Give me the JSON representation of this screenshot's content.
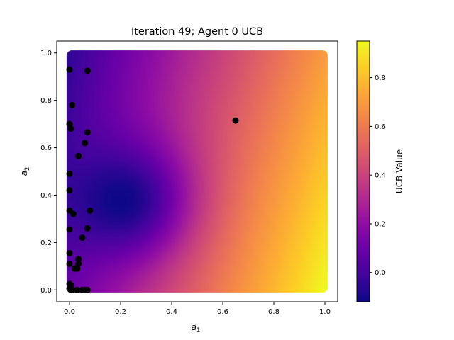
{
  "chart_data": {
    "type": "heatmap",
    "title": "Iteration 49; Agent 0 UCB",
    "xlabel": "a",
    "xlabel_sub": "1",
    "ylabel": "a",
    "ylabel_sub": "2",
    "xlim": [
      -0.05,
      1.05
    ],
    "ylim": [
      -0.05,
      1.05
    ],
    "x_ticks": [
      0.0,
      0.2,
      0.4,
      0.6,
      0.8,
      1.0
    ],
    "x_tick_labels": [
      "0.0",
      "0.2",
      "0.4",
      "0.6",
      "0.8",
      "1.0"
    ],
    "y_ticks": [
      0.0,
      0.2,
      0.4,
      0.6,
      0.8,
      1.0
    ],
    "y_tick_labels": [
      "0.0",
      "0.2",
      "0.4",
      "0.6",
      "0.8",
      "1.0"
    ],
    "colorbar": {
      "label": "UCB Value",
      "colormap": "plasma",
      "vmin": -0.12,
      "vmax": 0.95,
      "ticks": [
        0.0,
        0.2,
        0.4,
        0.6,
        0.8
      ],
      "tick_labels": [
        "0.0",
        "0.2",
        "0.4",
        "0.6",
        "0.8"
      ]
    },
    "surface": {
      "minimum_at": [
        0.2,
        0.38
      ],
      "minimum_value": -0.12,
      "corner_values": {
        "bottom_left": 0.1,
        "top_left": -0.05,
        "top_right": 0.7,
        "bottom_right": 0.95
      }
    },
    "sampled_points": [
      [
        0.0,
        0.93
      ],
      [
        0.07,
        0.925
      ],
      [
        0.01,
        0.78
      ],
      [
        0.0,
        0.7
      ],
      [
        0.005,
        0.68
      ],
      [
        0.07,
        0.665
      ],
      [
        0.06,
        0.62
      ],
      [
        0.035,
        0.565
      ],
      [
        0.0,
        0.49
      ],
      [
        0.0,
        0.42
      ],
      [
        0.0,
        0.335
      ],
      [
        0.015,
        0.32
      ],
      [
        0.08,
        0.335
      ],
      [
        0.0,
        0.255
      ],
      [
        0.07,
        0.26
      ],
      [
        0.05,
        0.22
      ],
      [
        0.0,
        0.155
      ],
      [
        0.035,
        0.13
      ],
      [
        0.0,
        0.11
      ],
      [
        0.035,
        0.11
      ],
      [
        0.02,
        0.09
      ],
      [
        0.03,
        0.09
      ],
      [
        0.0,
        0.025
      ],
      [
        0.005,
        0.02
      ],
      [
        0.0,
        0.005
      ],
      [
        0.005,
        0.0
      ],
      [
        0.01,
        0.0
      ],
      [
        0.03,
        0.0
      ],
      [
        0.05,
        0.0
      ],
      [
        0.06,
        0.0
      ],
      [
        0.07,
        0.0
      ],
      [
        0.65,
        0.715
      ]
    ],
    "grid": false
  }
}
